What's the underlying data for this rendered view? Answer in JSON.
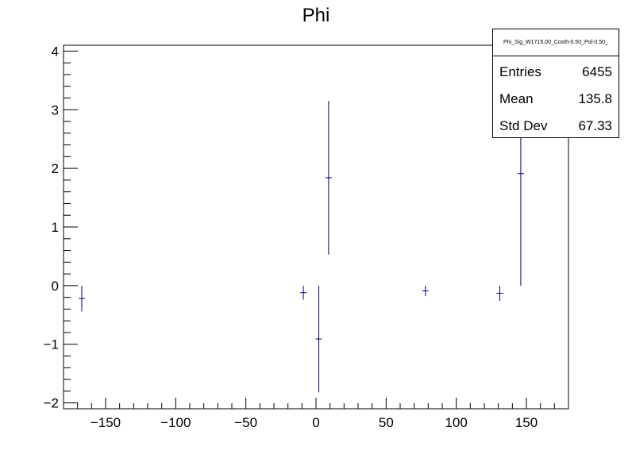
{
  "chart_data": {
    "type": "scatter",
    "title": "Phi",
    "xlabel": "",
    "ylabel": "",
    "xlim": [
      -180,
      180
    ],
    "ylim": [
      -2.1,
      4.1
    ],
    "xticks": [
      -150,
      -100,
      -50,
      0,
      50,
      100,
      150
    ],
    "xtick_labels": [
      "−150",
      "−100",
      "−50",
      "0",
      "50",
      "100",
      "150"
    ],
    "yticks": [
      -2,
      -1,
      0,
      1,
      2,
      3,
      4
    ],
    "ytick_labels": [
      "−2",
      "−1",
      "0",
      "1",
      "2",
      "3",
      "4"
    ],
    "series": [
      {
        "color": "#000080",
        "points": [
          {
            "x": -167,
            "y": -0.22,
            "err": 0.22
          },
          {
            "x": -9,
            "y": -0.12,
            "err": 0.12
          },
          {
            "x": 2,
            "y": -0.91,
            "err": 0.91
          },
          {
            "x": 9,
            "y": 1.84,
            "err": 1.31
          },
          {
            "x": 78,
            "y": -0.09,
            "err": 0.09
          },
          {
            "x": 131,
            "y": -0.13,
            "err": 0.13
          },
          {
            "x": 146,
            "y": 1.91,
            "err": 1.91
          }
        ]
      }
    ],
    "grid": false,
    "stats": {
      "name": "Phi_Sig_W1715.00_Costh-0.50_Pol-0.50_",
      "rows": [
        {
          "label": "Entries",
          "value": "6455"
        },
        {
          "label": "Mean",
          "value": "135.8"
        },
        {
          "label": "Std Dev",
          "value": "67.33"
        }
      ]
    }
  }
}
